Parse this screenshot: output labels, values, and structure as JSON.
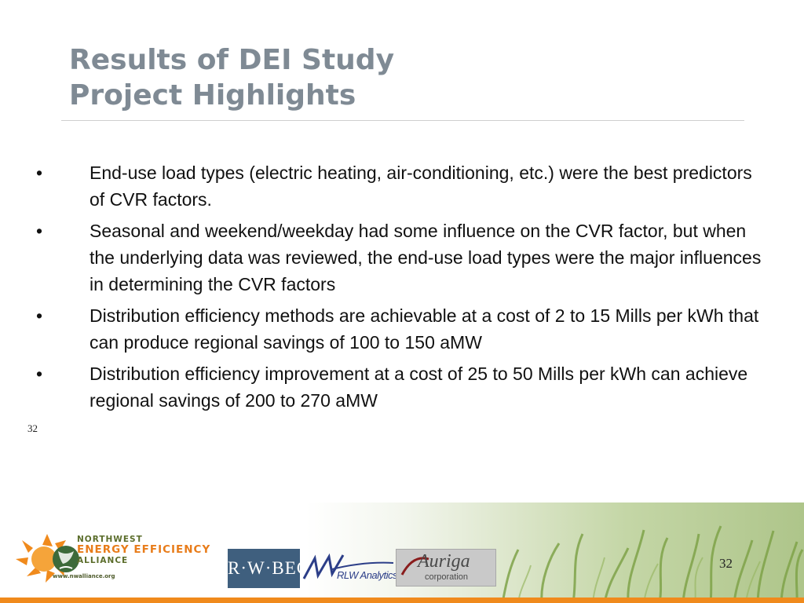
{
  "slide": {
    "title_lines": [
      "Results of DEI Study",
      "Project Highlights"
    ],
    "bullet_symbol": "•",
    "bullets": [
      "End-use load types (electric heating, air-conditioning, etc.) were the best predictors of CVR factors.",
      "Seasonal and weekend/weekday had some influence on the CVR factor, but when the underlying data was reviewed, the end-use load types were the major influences in determining the CVR factors",
      "Distribution efficiency methods are achievable at a cost of 2 to 15 Mills per kWh that can produce regional savings of 100 to 150 aMW",
      "Distribution efficiency improvement at a cost of 25 to 50 Mills per kWh can achieve regional savings of 200 to 270 aMW"
    ],
    "ghost_number": "32",
    "page_number": "32"
  },
  "footer": {
    "neea": {
      "line1": "NORTHWEST",
      "line2": "ENERGY EFFICIENCY",
      "line3": "ALLIANCE",
      "url": "www.nwalliance.org"
    },
    "rwbeck_label": "R·W·BECK",
    "rlw_label": "RLW Analytics",
    "auriga_name": "Auriga",
    "auriga_sub": "corporation",
    "colors": {
      "orange": "#f08a1c",
      "olive": "#5b6d2b",
      "beck_blue": "#3f5f7e"
    }
  }
}
